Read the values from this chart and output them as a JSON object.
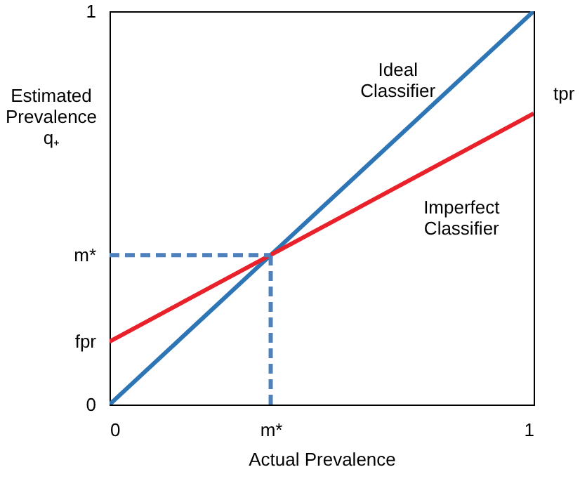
{
  "chart_data": {
    "type": "line",
    "xlabel": "Actual Prevalence",
    "ylabel": "Estimated Prevalence q₊",
    "series": [
      {
        "color": "#2e75b6",
        "x": [
          0,
          1
        ],
        "values": [
          0,
          1
        ]
      },
      {
        "color": "#e8212a",
        "x": [
          0,
          1
        ],
        "values": [
          0.16,
          0.74
        ]
      },
      {
        "color": "#4f81bd",
        "x": [
          0.38,
          0.38
        ],
        "values": [
          0,
          0.38
        ],
        "line_style": "dashed"
      },
      {
        "color": "#4f81bd",
        "x": [
          0,
          0.38
        ],
        "values": [
          0.38,
          0.38
        ],
        "line_style": "dashed"
      }
    ],
    "xlim": [
      0,
      1
    ],
    "ylim": [
      0,
      1
    ],
    "xticks": [
      0,
      {
        "value": 0.38,
        "label": "m*"
      },
      1
    ],
    "yticks": [
      0,
      {
        "value": 0.16,
        "label": "fpr"
      },
      {
        "value": 0.38,
        "label": "m*"
      },
      1
    ],
    "annotations": [
      "Ideal Classifier",
      "Imperfect Classifier",
      {
        "text": "tpr",
        "x": 1,
        "y": 0.74
      }
    ],
    "grid": false,
    "marker": "none",
    "line_style": "solid"
  }
}
